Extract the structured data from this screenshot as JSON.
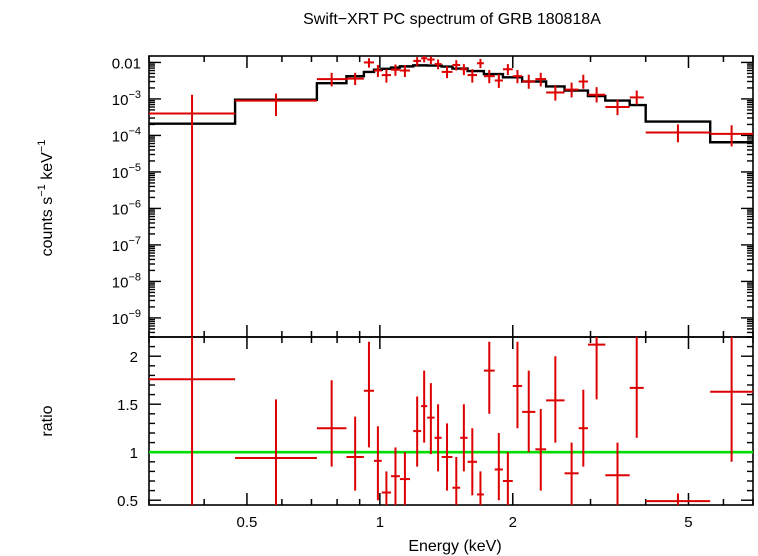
{
  "chart_data": {
    "type": "scatter",
    "title": "Swift−XRT PC spectrum of GRB 180818A",
    "xlabel": "Energy (keV)",
    "x_scale": "log",
    "xlim": [
      0.3,
      7.0
    ],
    "x_ticks": [
      {
        "v": 0.5,
        "label": "0.5"
      },
      {
        "v": 1,
        "label": "1"
      },
      {
        "v": 2,
        "label": "2"
      },
      {
        "v": 5,
        "label": "5"
      }
    ],
    "top_panel": {
      "ylabel_main": "counts s",
      "ylabel_exp1": "−1",
      "ylabel_mid": " keV",
      "ylabel_exp2": "−1",
      "y_scale": "log",
      "ylim": [
        3e-10,
        0.015
      ],
      "y_ticks": [
        {
          "v": 0.01,
          "base": "0.01",
          "exp": ""
        },
        {
          "v": 0.001,
          "base": "10",
          "exp": "−3"
        },
        {
          "v": 0.0001,
          "base": "10",
          "exp": "−4"
        },
        {
          "v": 1e-05,
          "base": "10",
          "exp": "−5"
        },
        {
          "v": 1e-06,
          "base": "10",
          "exp": "−6"
        },
        {
          "v": 1e-07,
          "base": "10",
          "exp": "−7"
        },
        {
          "v": 1e-08,
          "base": "10",
          "exp": "−8"
        },
        {
          "v": 1e-09,
          "base": "10",
          "exp": "−9"
        }
      ],
      "data": [
        {
          "x0": 0.3,
          "x1": 0.47,
          "y": 0.0004,
          "ylo": 1e-11,
          "yhi": 0.0013
        },
        {
          "x0": 0.47,
          "x1": 0.72,
          "y": 0.0009,
          "ylo": 0.00034,
          "yhi": 0.0014
        },
        {
          "x0": 0.72,
          "x1": 0.84,
          "y": 0.0035,
          "ylo": 0.0022,
          "yhi": 0.0052
        },
        {
          "x0": 0.84,
          "x1": 0.92,
          "y": 0.0036,
          "ylo": 0.0024,
          "yhi": 0.0052
        },
        {
          "x0": 0.92,
          "x1": 0.97,
          "y": 0.01,
          "ylo": 0.0072,
          "yhi": 0.013
        },
        {
          "x0": 0.97,
          "x1": 1.01,
          "y": 0.006,
          "ylo": 0.004,
          "yhi": 0.0085
        },
        {
          "x0": 1.01,
          "x1": 1.06,
          "y": 0.0045,
          "ylo": 0.0028,
          "yhi": 0.0065
        },
        {
          "x0": 1.06,
          "x1": 1.11,
          "y": 0.0063,
          "ylo": 0.0043,
          "yhi": 0.0088
        },
        {
          "x0": 1.11,
          "x1": 1.17,
          "y": 0.006,
          "ylo": 0.004,
          "yhi": 0.0085
        },
        {
          "x0": 1.19,
          "x1": 1.24,
          "y": 0.011,
          "ylo": 0.008,
          "yhi": 0.014
        },
        {
          "x0": 1.24,
          "x1": 1.28,
          "y": 0.013,
          "ylo": 0.01,
          "yhi": 0.015
        },
        {
          "x0": 1.28,
          "x1": 1.33,
          "y": 0.012,
          "ylo": 0.009,
          "yhi": 0.0145
        },
        {
          "x0": 1.33,
          "x1": 1.38,
          "y": 0.009,
          "ylo": 0.0065,
          "yhi": 0.012
        },
        {
          "x0": 1.38,
          "x1": 1.46,
          "y": 0.0055,
          "ylo": 0.0037,
          "yhi": 0.0078
        },
        {
          "x0": 1.46,
          "x1": 1.52,
          "y": 0.0085,
          "ylo": 0.006,
          "yhi": 0.0115
        },
        {
          "x0": 1.52,
          "x1": 1.58,
          "y": 0.0065,
          "ylo": 0.0045,
          "yhi": 0.009
        },
        {
          "x0": 1.58,
          "x1": 1.66,
          "y": 0.0045,
          "ylo": 0.0028,
          "yhi": 0.0065
        },
        {
          "x0": 1.66,
          "x1": 1.72,
          "y": 0.0095,
          "ylo": 0.007,
          "yhi": 0.0125
        },
        {
          "x0": 1.72,
          "x1": 1.82,
          "y": 0.0042,
          "ylo": 0.0027,
          "yhi": 0.0062
        },
        {
          "x0": 1.82,
          "x1": 1.9,
          "y": 0.0032,
          "ylo": 0.002,
          "yhi": 0.0048
        },
        {
          "x0": 1.9,
          "x1": 2.0,
          "y": 0.0065,
          "ylo": 0.0045,
          "yhi": 0.009
        },
        {
          "x0": 2.0,
          "x1": 2.1,
          "y": 0.0042,
          "ylo": 0.0027,
          "yhi": 0.0062
        },
        {
          "x0": 2.1,
          "x1": 2.25,
          "y": 0.003,
          "ylo": 0.0019,
          "yhi": 0.0046
        },
        {
          "x0": 2.25,
          "x1": 2.38,
          "y": 0.0035,
          "ylo": 0.0022,
          "yhi": 0.0052
        },
        {
          "x0": 2.38,
          "x1": 2.62,
          "y": 0.0015,
          "ylo": 0.0009,
          "yhi": 0.0024
        },
        {
          "x0": 2.62,
          "x1": 2.82,
          "y": 0.0018,
          "ylo": 0.0011,
          "yhi": 0.0028
        },
        {
          "x0": 2.82,
          "x1": 2.96,
          "y": 0.003,
          "ylo": 0.0019,
          "yhi": 0.0046
        },
        {
          "x0": 2.96,
          "x1": 3.24,
          "y": 0.0013,
          "ylo": 0.0008,
          "yhi": 0.0021
        },
        {
          "x0": 3.24,
          "x1": 3.68,
          "y": 0.0006,
          "ylo": 0.00036,
          "yhi": 0.00095
        },
        {
          "x0": 3.68,
          "x1": 3.96,
          "y": 0.0011,
          "ylo": 0.0007,
          "yhi": 0.0017
        },
        {
          "x0": 4.0,
          "x1": 5.6,
          "y": 0.00012,
          "ylo": 6.5e-05,
          "yhi": 0.0002
        },
        {
          "x0": 5.6,
          "x1": 7.0,
          "y": 0.00011,
          "ylo": 5e-05,
          "yhi": 0.00019
        }
      ],
      "model": [
        {
          "x0": 0.3,
          "x1": 0.47,
          "y": 0.00021
        },
        {
          "x0": 0.47,
          "x1": 0.72,
          "y": 0.00095
        },
        {
          "x0": 0.72,
          "x1": 0.84,
          "y": 0.0027
        },
        {
          "x0": 0.84,
          "x1": 0.92,
          "y": 0.0042
        },
        {
          "x0": 0.92,
          "x1": 0.97,
          "y": 0.0055
        },
        {
          "x0": 0.97,
          "x1": 1.01,
          "y": 0.0063
        },
        {
          "x0": 1.01,
          "x1": 1.06,
          "y": 0.0067
        },
        {
          "x0": 1.06,
          "x1": 1.11,
          "y": 0.0072
        },
        {
          "x0": 1.11,
          "x1": 1.19,
          "y": 0.0078
        },
        {
          "x0": 1.19,
          "x1": 1.28,
          "y": 0.0083
        },
        {
          "x0": 1.28,
          "x1": 1.38,
          "y": 0.0082
        },
        {
          "x0": 1.38,
          "x1": 1.46,
          "y": 0.0077
        },
        {
          "x0": 1.46,
          "x1": 1.58,
          "y": 0.0068
        },
        {
          "x0": 1.58,
          "x1": 1.72,
          "y": 0.0058
        },
        {
          "x0": 1.72,
          "x1": 1.9,
          "y": 0.0048
        },
        {
          "x0": 1.9,
          "x1": 2.1,
          "y": 0.0039
        },
        {
          "x0": 2.1,
          "x1": 2.38,
          "y": 0.003
        },
        {
          "x0": 2.38,
          "x1": 2.62,
          "y": 0.0022
        },
        {
          "x0": 2.62,
          "x1": 2.96,
          "y": 0.0017
        },
        {
          "x0": 2.96,
          "x1": 3.24,
          "y": 0.0012
        },
        {
          "x0": 3.24,
          "x1": 3.68,
          "y": 0.0009
        },
        {
          "x0": 3.68,
          "x1": 4.0,
          "y": 0.00068
        },
        {
          "x0": 4.0,
          "x1": 5.6,
          "y": 0.00024
        },
        {
          "x0": 5.6,
          "x1": 7.0,
          "y": 6.5e-05
        }
      ]
    },
    "bottom_panel": {
      "ylabel": "ratio",
      "y_scale": "linear",
      "ylim": [
        0.45,
        2.2
      ],
      "y_ticks": [
        {
          "v": 0.5,
          "label": "0.5"
        },
        {
          "v": 1,
          "label": "1"
        },
        {
          "v": 1.5,
          "label": "1.5"
        },
        {
          "v": 2,
          "label": "2"
        }
      ],
      "reference_line": 1,
      "data": [
        {
          "x0": 0.3,
          "x1": 0.47,
          "y": 1.76,
          "ylo": 0.4,
          "yhi": 2.2
        },
        {
          "x0": 0.47,
          "x1": 0.72,
          "y": 0.94,
          "ylo": 0.4,
          "yhi": 1.55
        },
        {
          "x0": 0.72,
          "x1": 0.84,
          "y": 1.25,
          "ylo": 0.85,
          "yhi": 1.75
        },
        {
          "x0": 0.84,
          "x1": 0.92,
          "y": 0.95,
          "ylo": 0.6,
          "yhi": 1.37
        },
        {
          "x0": 0.92,
          "x1": 0.97,
          "y": 1.64,
          "ylo": 1.05,
          "yhi": 2.15
        },
        {
          "x0": 0.97,
          "x1": 1.01,
          "y": 0.91,
          "ylo": 0.5,
          "yhi": 1.27
        },
        {
          "x0": 1.01,
          "x1": 1.06,
          "y": 0.58,
          "ylo": 0.4,
          "yhi": 0.8
        },
        {
          "x0": 1.06,
          "x1": 1.11,
          "y": 0.75,
          "ylo": 0.45,
          "yhi": 1.05
        },
        {
          "x0": 1.11,
          "x1": 1.17,
          "y": 0.72,
          "ylo": 0.45,
          "yhi": 1.0
        },
        {
          "x0": 1.19,
          "x1": 1.24,
          "y": 1.22,
          "ylo": 0.85,
          "yhi": 1.58
        },
        {
          "x0": 1.24,
          "x1": 1.28,
          "y": 1.48,
          "ylo": 1.1,
          "yhi": 1.85
        },
        {
          "x0": 1.28,
          "x1": 1.33,
          "y": 1.36,
          "ylo": 0.98,
          "yhi": 1.72
        },
        {
          "x0": 1.33,
          "x1": 1.38,
          "y": 1.15,
          "ylo": 0.8,
          "yhi": 1.5
        },
        {
          "x0": 1.38,
          "x1": 1.46,
          "y": 0.95,
          "ylo": 0.6,
          "yhi": 1.3
        },
        {
          "x0": 1.46,
          "x1": 1.52,
          "y": 0.63,
          "ylo": 0.45,
          "yhi": 0.95
        },
        {
          "x0": 1.52,
          "x1": 1.58,
          "y": 1.15,
          "ylo": 0.8,
          "yhi": 1.5
        },
        {
          "x0": 1.58,
          "x1": 1.66,
          "y": 0.9,
          "ylo": 0.55,
          "yhi": 1.25
        },
        {
          "x0": 1.66,
          "x1": 1.72,
          "y": 0.56,
          "ylo": 0.42,
          "yhi": 0.8
        },
        {
          "x0": 1.72,
          "x1": 1.82,
          "y": 1.85,
          "ylo": 1.4,
          "yhi": 2.15
        },
        {
          "x0": 1.82,
          "x1": 1.9,
          "y": 0.82,
          "ylo": 0.5,
          "yhi": 1.2
        },
        {
          "x0": 1.9,
          "x1": 2.0,
          "y": 0.7,
          "ylo": 0.45,
          "yhi": 1.0
        },
        {
          "x0": 2.0,
          "x1": 2.1,
          "y": 1.69,
          "ylo": 1.25,
          "yhi": 2.15
        },
        {
          "x0": 2.1,
          "x1": 2.25,
          "y": 1.42,
          "ylo": 1.0,
          "yhi": 1.85
        },
        {
          "x0": 2.25,
          "x1": 2.38,
          "y": 1.03,
          "ylo": 0.6,
          "yhi": 1.45
        },
        {
          "x0": 2.38,
          "x1": 2.62,
          "y": 1.54,
          "ylo": 1.1,
          "yhi": 2.0
        },
        {
          "x0": 2.62,
          "x1": 2.82,
          "y": 0.78,
          "ylo": 0.45,
          "yhi": 1.1
        },
        {
          "x0": 2.82,
          "x1": 2.96,
          "y": 1.25,
          "ylo": 0.85,
          "yhi": 1.65
        },
        {
          "x0": 2.96,
          "x1": 3.24,
          "y": 2.12,
          "ylo": 1.55,
          "yhi": 2.2
        },
        {
          "x0": 3.24,
          "x1": 3.68,
          "y": 0.76,
          "ylo": 0.45,
          "yhi": 1.1
        },
        {
          "x0": 3.68,
          "x1": 3.96,
          "y": 1.67,
          "ylo": 1.15,
          "yhi": 2.2
        },
        {
          "x0": 4.0,
          "x1": 5.6,
          "y": 0.49,
          "ylo": 0.42,
          "yhi": 0.57
        },
        {
          "x0": 5.6,
          "x1": 7.0,
          "y": 1.63,
          "ylo": 0.9,
          "yhi": 2.2
        }
      ]
    },
    "colors": {
      "data": "#dd0000",
      "model": "#000000",
      "reference": "#00dd00",
      "axes": "#000000"
    }
  }
}
